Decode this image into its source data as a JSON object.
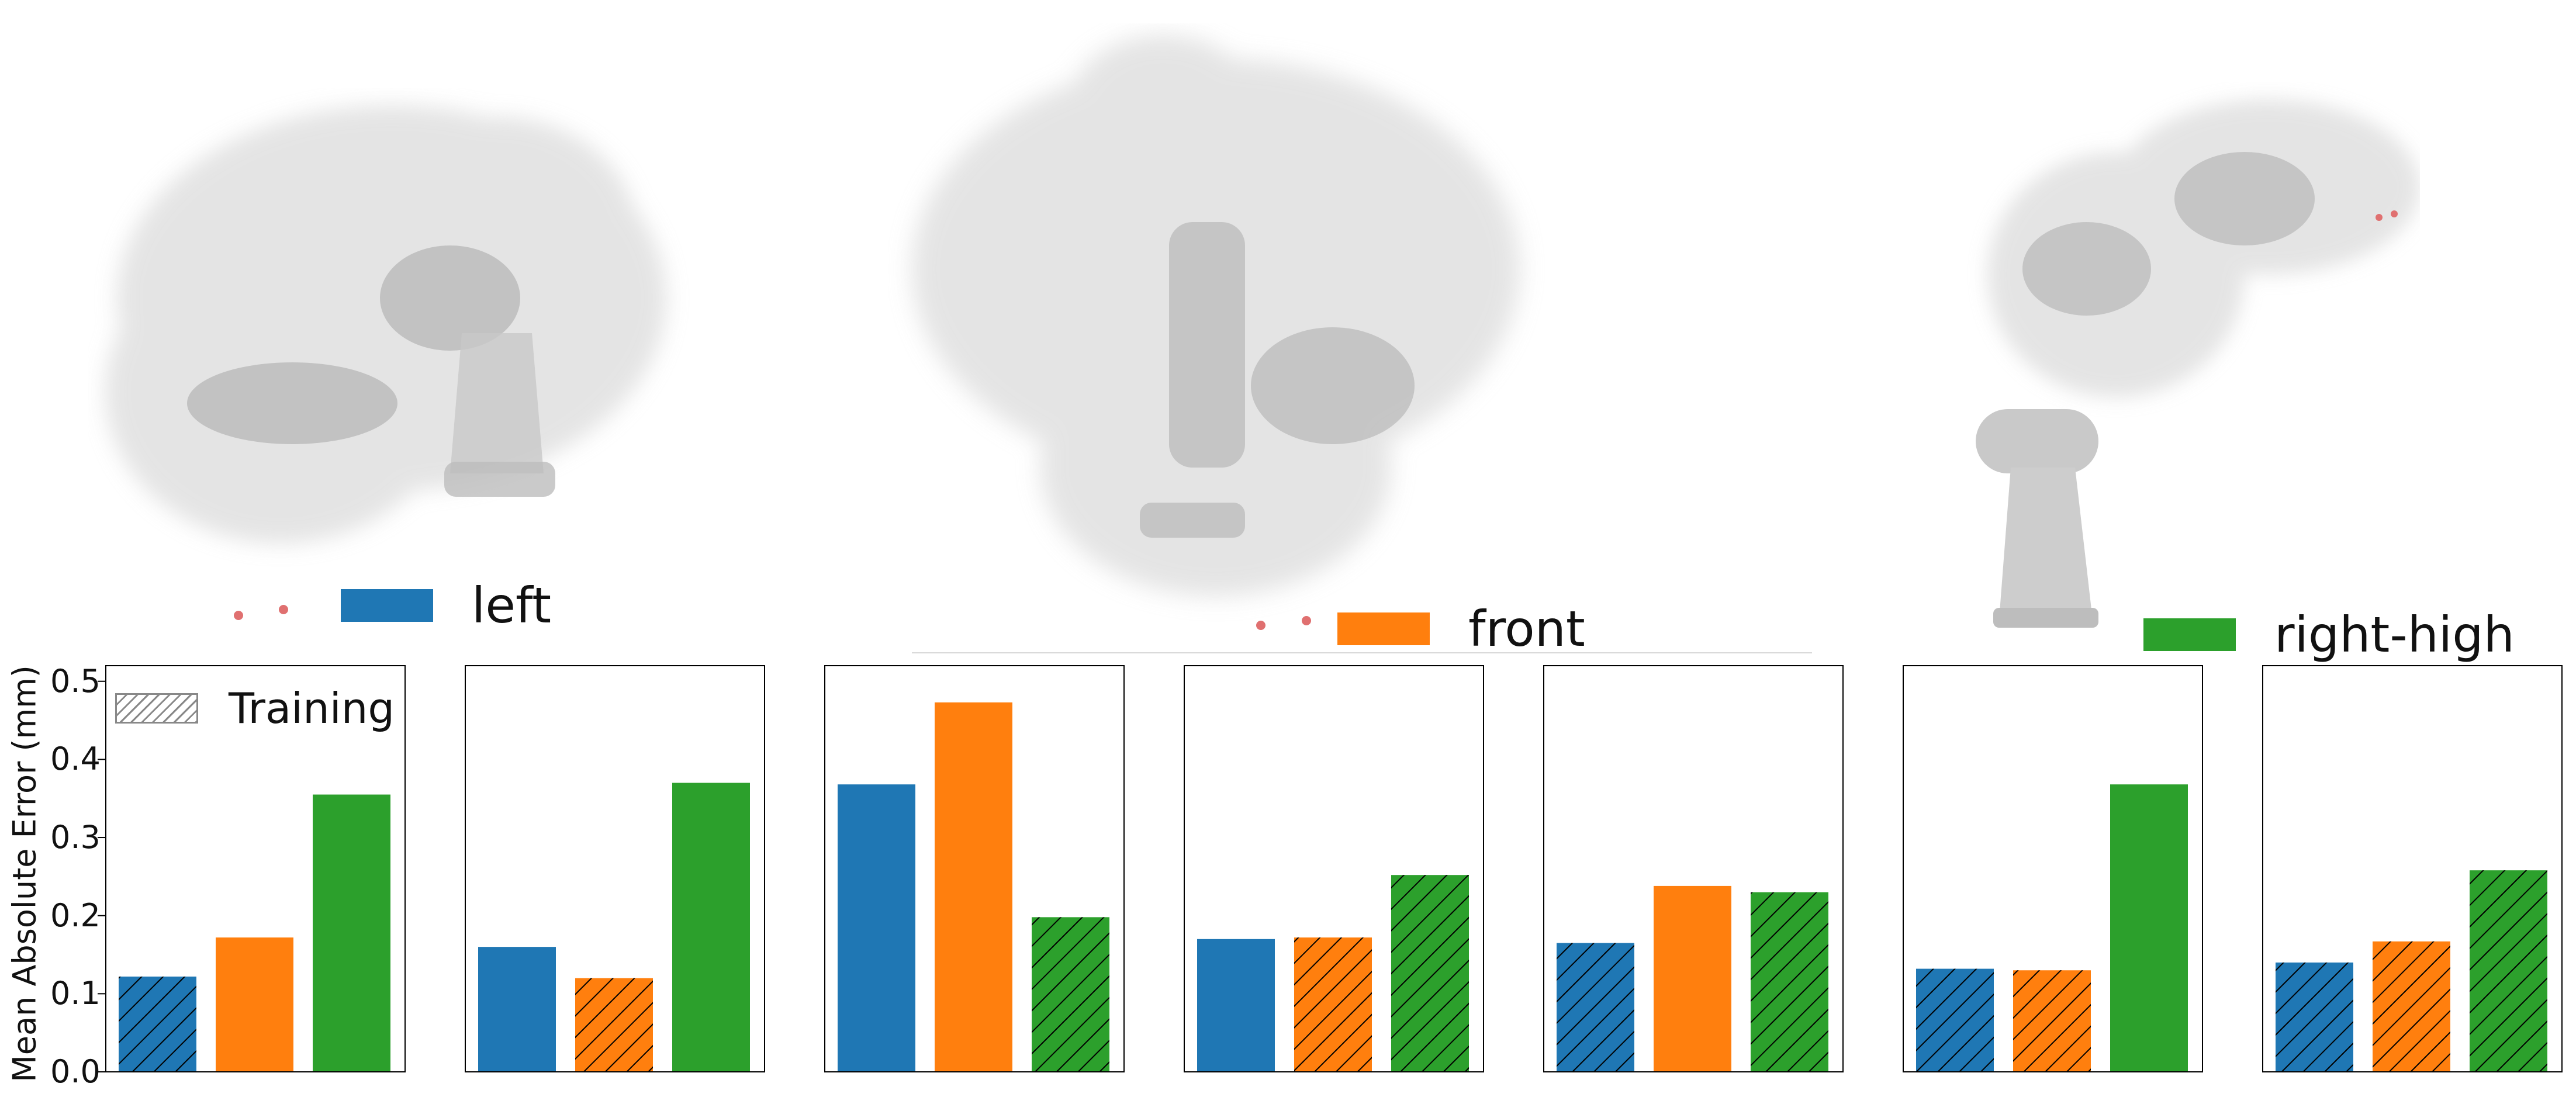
{
  "colors": {
    "left": "#1f77b4",
    "front": "#ff7f0e",
    "right-high": "#2ca02c"
  },
  "legend": {
    "entries": [
      {
        "key": "left",
        "label": "left"
      },
      {
        "key": "front",
        "label": "front"
      },
      {
        "key": "right-high",
        "label": "right-high"
      }
    ],
    "training_label": "Training"
  },
  "robot_views": [
    {
      "name": "left-view-robot"
    },
    {
      "name": "front-view-robot"
    },
    {
      "name": "right-high-view-robot"
    }
  ],
  "chart_data": {
    "type": "bar",
    "ylabel": "Mean Absolute Error (mm)",
    "ylim": [
      0,
      0.52
    ],
    "yticks": [
      "0.0",
      "0.1",
      "0.2",
      "0.3",
      "0.4",
      "0.5"
    ],
    "categories": [
      "left",
      "front",
      "right-high"
    ],
    "panels": [
      {
        "values": [
          0.122,
          0.172,
          0.355
        ],
        "training": [
          true,
          false,
          false
        ]
      },
      {
        "values": [
          0.16,
          0.12,
          0.37
        ],
        "training": [
          false,
          true,
          false
        ]
      },
      {
        "values": [
          0.368,
          0.473,
          0.198
        ],
        "training": [
          false,
          false,
          true
        ]
      },
      {
        "values": [
          0.17,
          0.172,
          0.252
        ],
        "training": [
          false,
          true,
          true
        ]
      },
      {
        "values": [
          0.165,
          0.238,
          0.23
        ],
        "training": [
          true,
          false,
          true
        ]
      },
      {
        "values": [
          0.132,
          0.13,
          0.368
        ],
        "training": [
          true,
          true,
          false
        ]
      },
      {
        "values": [
          0.14,
          0.167,
          0.258
        ],
        "training": [
          true,
          true,
          true
        ]
      }
    ]
  }
}
